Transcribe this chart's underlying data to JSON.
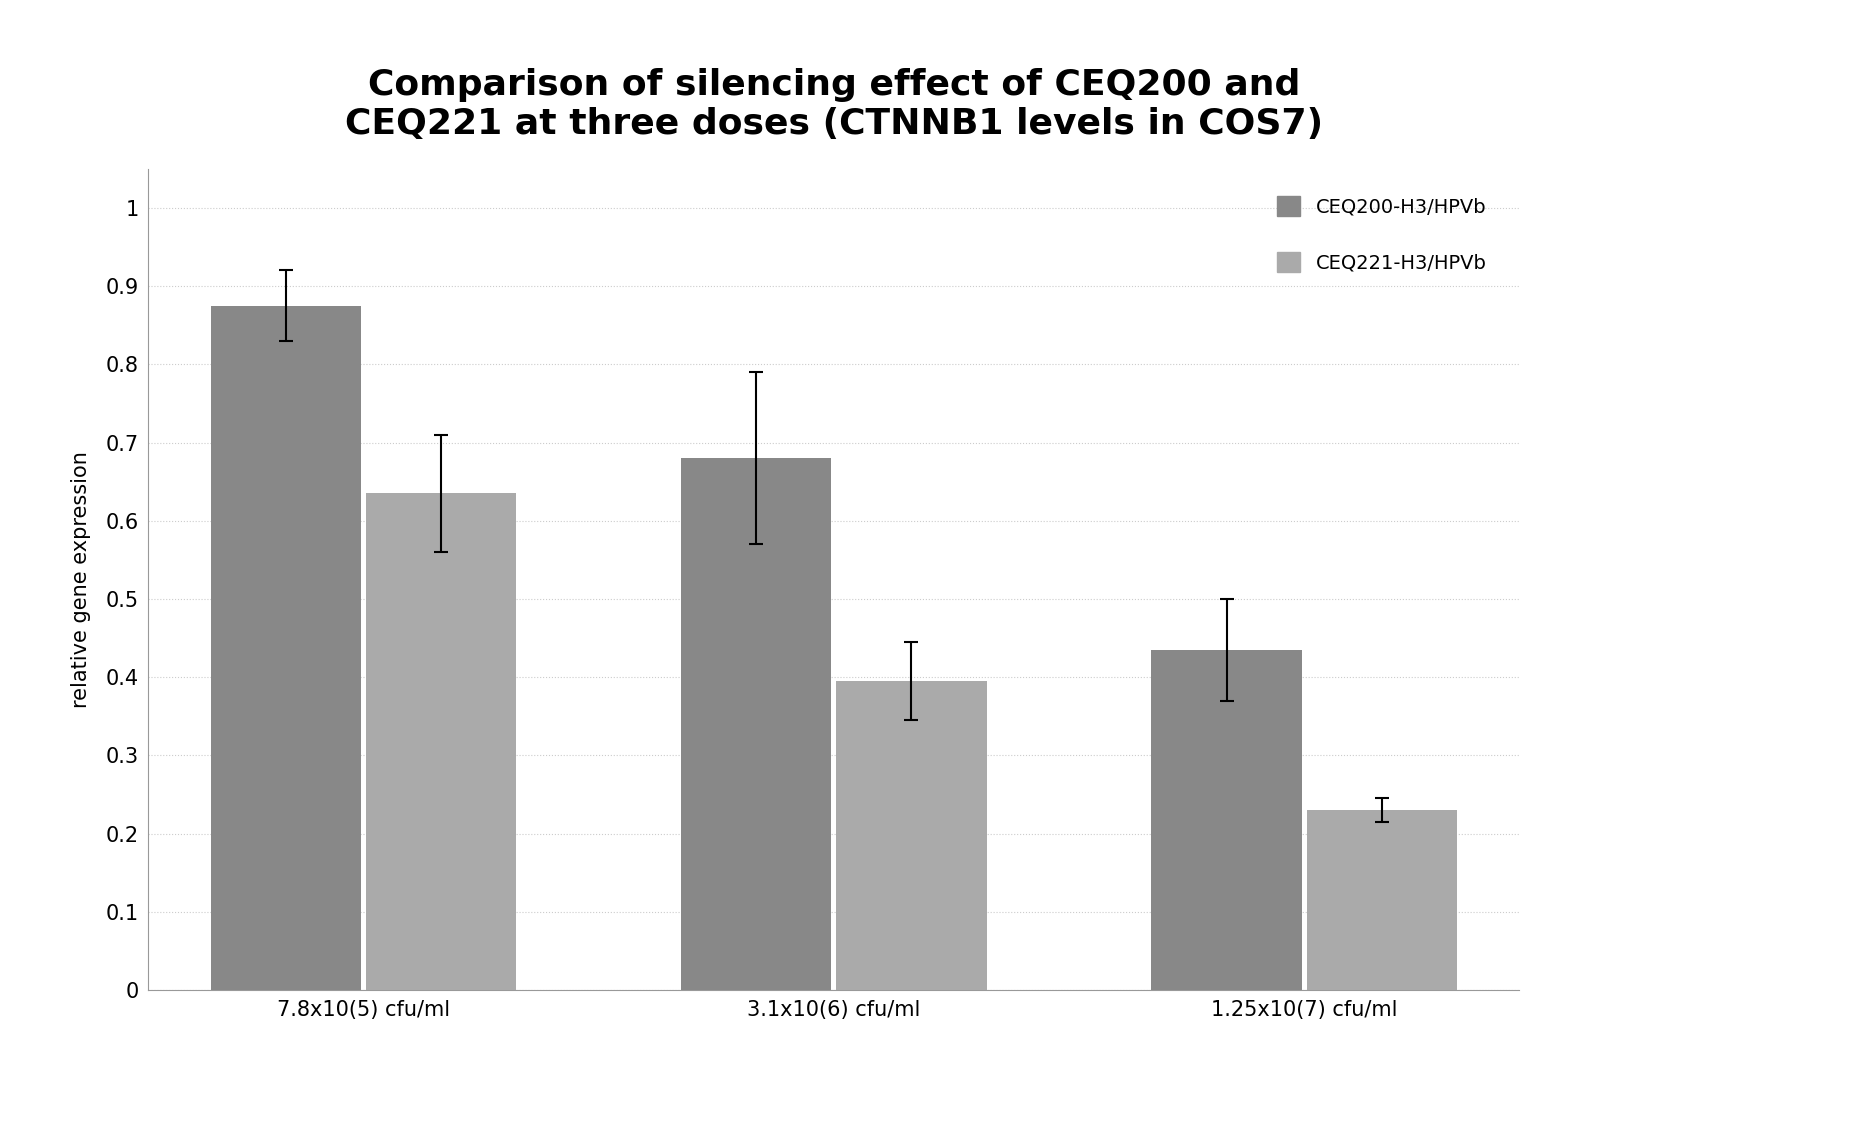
{
  "title": "Comparison of silencing effect of CEQ200 and\nCEQ221 at three doses (CTNNB1 levels in COS7)",
  "ylabel": "relative gene expression",
  "xlabel": "",
  "categories": [
    "7.8x10(5) cfu/ml",
    "3.1x10(6) cfu/ml",
    "1.25x10(7) cfu/ml"
  ],
  "series": [
    {
      "name": "CEQ200-H3/HPVb",
      "values": [
        0.875,
        0.68,
        0.435
      ],
      "errors": [
        0.045,
        0.11,
        0.065
      ],
      "color": "#888888"
    },
    {
      "name": "CEQ221-H3/HPVb",
      "values": [
        0.635,
        0.395,
        0.23
      ],
      "errors": [
        0.075,
        0.05,
        0.015
      ],
      "color": "#aaaaaa"
    }
  ],
  "ylim": [
    0,
    1.05
  ],
  "yticks": [
    0,
    0.1,
    0.2,
    0.3,
    0.4,
    0.5,
    0.6,
    0.7,
    0.8,
    0.9,
    1
  ],
  "bar_width": 0.32,
  "background_color": "#ffffff",
  "title_fontsize": 26,
  "axis_fontsize": 15,
  "tick_fontsize": 15,
  "legend_fontsize": 14
}
